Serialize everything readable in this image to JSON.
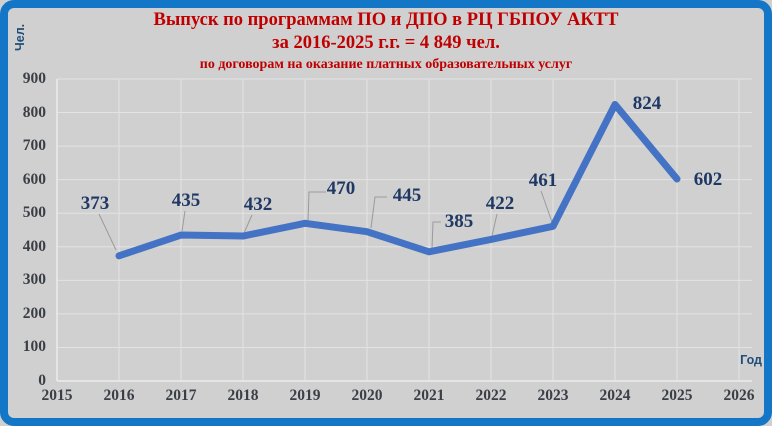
{
  "frame": {
    "border_color": "#1476c6",
    "background_color": "#d0d0d0"
  },
  "title": {
    "line1": "Выпуск по программам ПО и ДПО в РЦ ГБПОУ АКТТ",
    "line2": "за 2016-2025 г.г. = 4 849 чел.",
    "line3": "по договорам на оказание платных образовательных услуг",
    "color": "#c00000"
  },
  "chart_data": {
    "type": "line",
    "x": [
      2016,
      2017,
      2018,
      2019,
      2020,
      2021,
      2022,
      2023,
      2024,
      2025
    ],
    "values": [
      373,
      435,
      432,
      470,
      445,
      385,
      422,
      461,
      824,
      602
    ],
    "xlabel": "Год",
    "ylabel": "Чел.",
    "xlim": [
      2015,
      2026
    ],
    "ylim": [
      0,
      900
    ],
    "x_ticks": [
      2015,
      2016,
      2017,
      2018,
      2019,
      2020,
      2021,
      2022,
      2023,
      2024,
      2025,
      2026
    ],
    "y_ticks": [
      0,
      100,
      200,
      300,
      400,
      500,
      600,
      700,
      800,
      900
    ],
    "grid": true,
    "legend_position": "none",
    "data_labels_shown": true,
    "line_color": "#4472c4",
    "data_label_color": "#1f3864",
    "tick_label_color": "#3a3e45",
    "gridline_color": "#e3e3e3",
    "leader_line_color": "#9b9b9b"
  }
}
